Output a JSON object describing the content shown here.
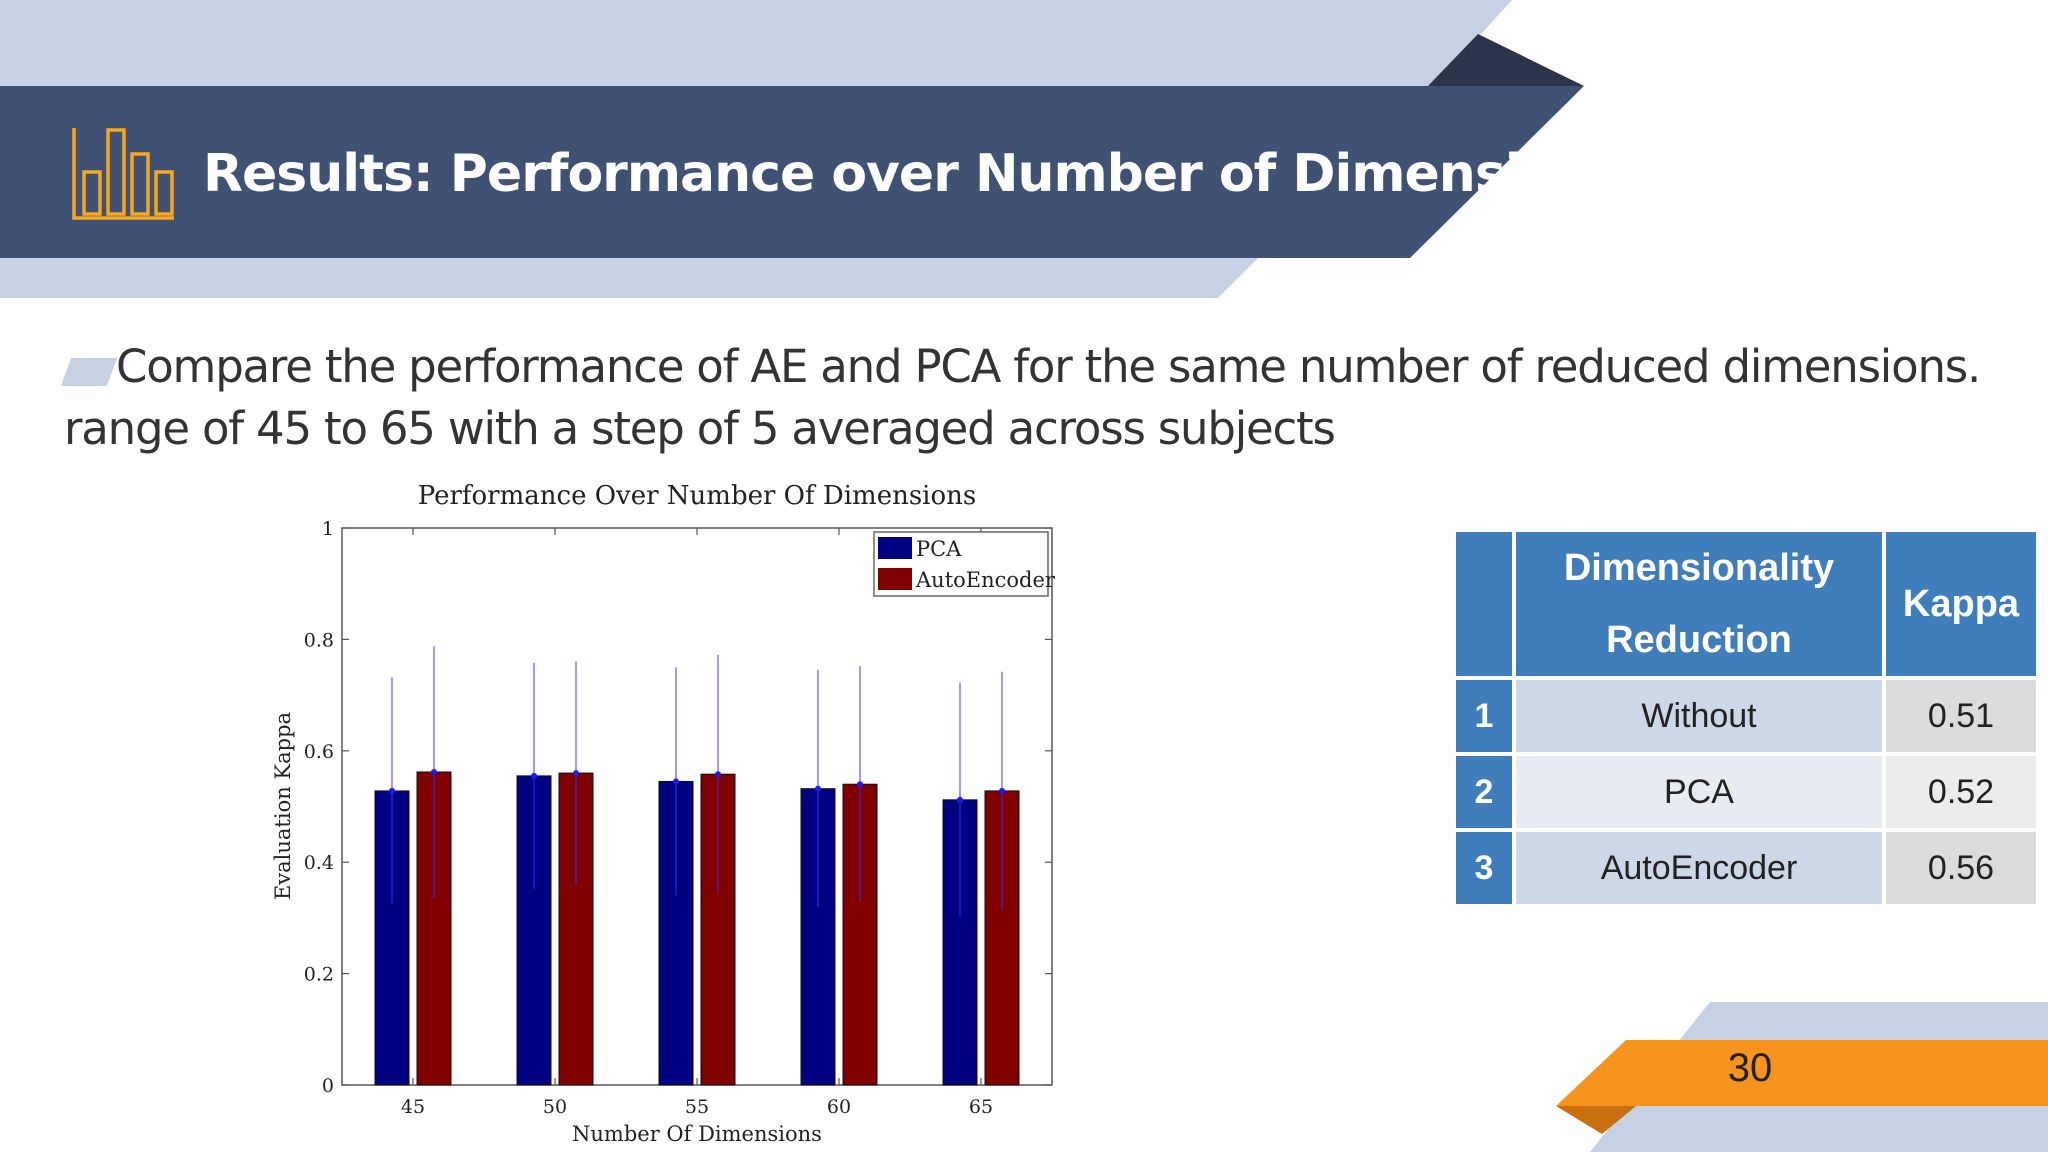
{
  "slide": {
    "title": "Results: Performance over Number of Dimensions",
    "bullet": "Compare the performance of AE and PCA for the same number of reduced dimensions. range of 45 to 65 with a step of 5 averaged across subjects",
    "page_number": "30",
    "colors": {
      "banner": "#3f5273",
      "banner_light": "#c6d1e4",
      "banner_dark": "#2b344a",
      "accent_orange": "#f7941d",
      "icon_orange": "#f5a623",
      "table_blue": "#3f7dbb"
    },
    "icon": "bar-chart-icon"
  },
  "chart_data": {
    "type": "bar",
    "title": "Performance Over Number Of Dimensions",
    "xlabel": "Number Of Dimensions",
    "ylabel": "Evaluation Kappa",
    "categories": [
      "45",
      "50",
      "55",
      "60",
      "65"
    ],
    "yticks": [
      "0",
      "0.2",
      "0.4",
      "0.6",
      "0.8",
      "1"
    ],
    "ylim": [
      0,
      1
    ],
    "legend_position": "top-right",
    "grid": false,
    "series": [
      {
        "name": "PCA",
        "color": "#000080",
        "values": [
          0.528,
          0.555,
          0.545,
          0.532,
          0.512
        ],
        "err_hi": [
          0.732,
          0.758,
          0.75,
          0.745,
          0.722
        ],
        "err_lo": [
          0.325,
          0.352,
          0.34,
          0.32,
          0.302
        ]
      },
      {
        "name": "AutoEncoder",
        "color": "#800000",
        "values": [
          0.562,
          0.56,
          0.558,
          0.54,
          0.528
        ],
        "err_hi": [
          0.788,
          0.76,
          0.772,
          0.752,
          0.742
        ],
        "err_lo": [
          0.336,
          0.36,
          0.344,
          0.328,
          0.314
        ]
      }
    ]
  },
  "table": {
    "headers": {
      "index": "",
      "dimensionality": "Dimensionality Reduction",
      "kappa": "Kappa"
    },
    "rows": [
      {
        "index": "1",
        "method": "Without",
        "kappa": "0.51"
      },
      {
        "index": "2",
        "method": "PCA",
        "kappa": "0.52"
      },
      {
        "index": "3",
        "method": "AutoEncoder",
        "kappa": "0.56"
      }
    ]
  }
}
